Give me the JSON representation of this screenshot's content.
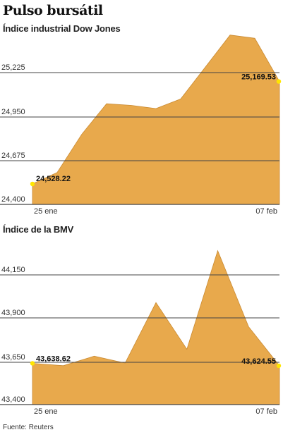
{
  "title": "Pulso bursátil",
  "source": "Fuente: Reuters",
  "colors": {
    "area": "#e8a94c",
    "area_stroke": "#c98a32",
    "marker": "#ffe600",
    "grid": "#444444"
  },
  "chart_data": [
    {
      "type": "area",
      "title": "Índice industrial Dow Jones",
      "x_start_label": "25 ene",
      "x_end_label": "07 feb",
      "yticks": [
        "24,400",
        "24,675",
        "24,950",
        "25,225"
      ],
      "ylim": [
        24400,
        25500
      ],
      "values": [
        24528.22,
        24600,
        24840,
        25030,
        25020,
        25000,
        25060,
        25260,
        25460,
        25440,
        25169.53
      ],
      "first_label": "24,528.22",
      "last_label": "25,169.53"
    },
    {
      "type": "area",
      "title": "Índice de la BMV",
      "x_start_label": "25 ene",
      "x_end_label": "07 feb",
      "yticks": [
        "43,400",
        "43,650",
        "43,900",
        "44,150"
      ],
      "ylim": [
        43400,
        44320
      ],
      "values": [
        43638.62,
        43625,
        43680,
        43640,
        43990,
        43720,
        44290,
        43850,
        43624.55
      ],
      "first_label": "43,638.62",
      "last_label": "43,624.55"
    }
  ]
}
